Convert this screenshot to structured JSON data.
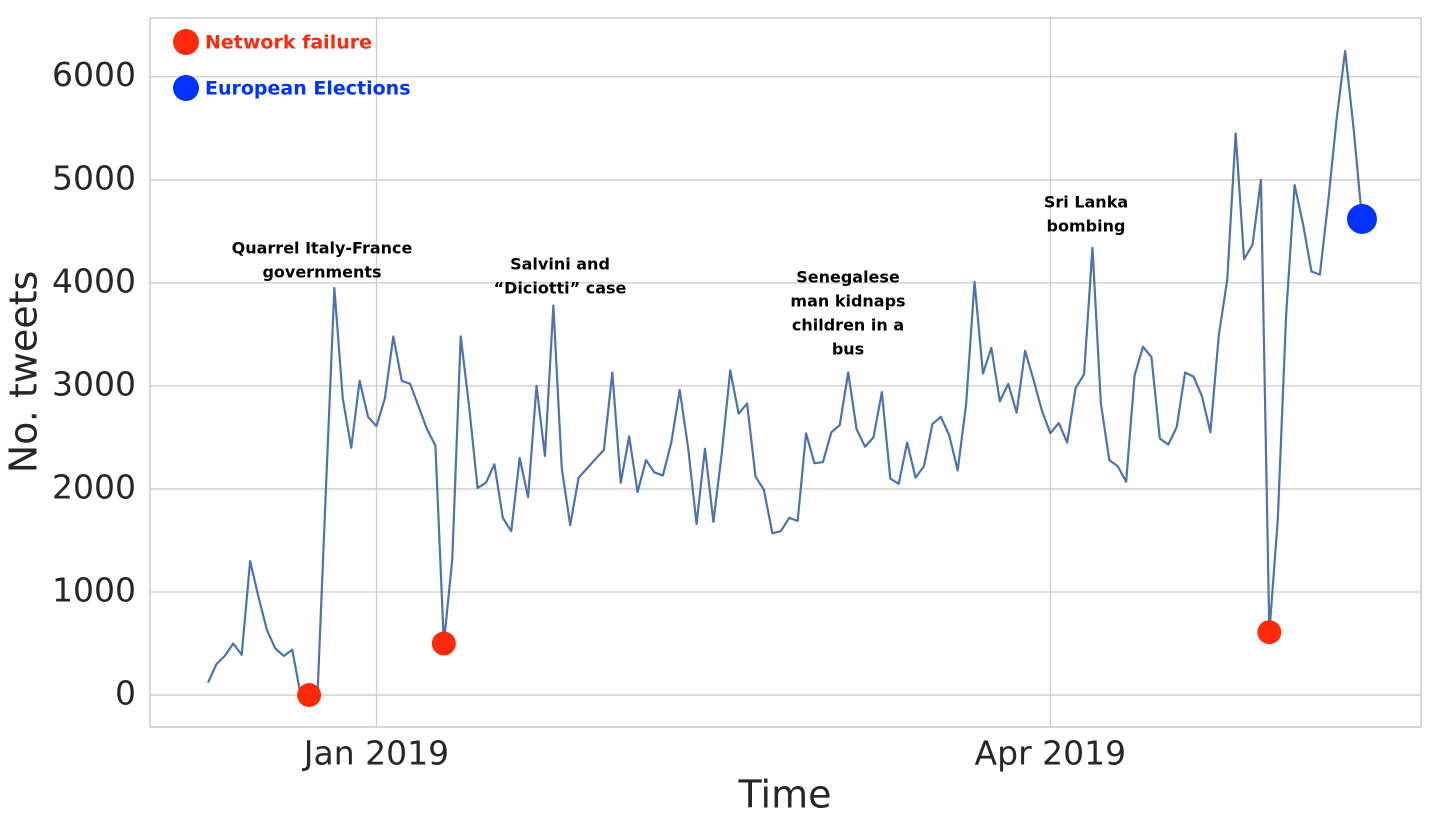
{
  "chart_data": {
    "type": "line",
    "xlabel": "Time",
    "ylabel": "No. tweets",
    "ylim": [
      -310,
      6570
    ],
    "yticks": [
      0,
      1000,
      2000,
      3000,
      4000,
      5000,
      6000
    ],
    "grid": true,
    "legend": "upper left",
    "categories": [
      null,
      null,
      null,
      null,
      null,
      null,
      null,
      null,
      null,
      null,
      null,
      null,
      null,
      null,
      null,
      null,
      null,
      null,
      null,
      null,
      "Jan 2019",
      null,
      null,
      null,
      null,
      null,
      null,
      null,
      null,
      null,
      null,
      null,
      null,
      null,
      null,
      null,
      null,
      null,
      null,
      null,
      null,
      null,
      null,
      null,
      null,
      null,
      null,
      null,
      null,
      null,
      null,
      null,
      null,
      null,
      null,
      null,
      null,
      null,
      null,
      null,
      null,
      null,
      null,
      null,
      null,
      null,
      null,
      null,
      null,
      null,
      null,
      null,
      null,
      null,
      null,
      null,
      null,
      null,
      null,
      null,
      null,
      null,
      null,
      null,
      null,
      null,
      null,
      null,
      null,
      null,
      null,
      null,
      null,
      null,
      null,
      null,
      null,
      null,
      null,
      null,
      "Apr 2019",
      null,
      null,
      null,
      null,
      null,
      null,
      null,
      null,
      null,
      null,
      null,
      null,
      null,
      null,
      null,
      null,
      null,
      null,
      null,
      null,
      null,
      null,
      null,
      null,
      null,
      null,
      null,
      null,
      null,
      null,
      null,
      null,
      null,
      null,
      null,
      null,
      null
    ],
    "series": [
      {
        "color": "#4c72b0",
        "values": [
          120,
          300,
          380,
          500,
          390,
          1300,
          950,
          630,
          450,
          380,
          440,
          0,
          0,
          0,
          2000,
          3950,
          2880,
          2400,
          3050,
          2700,
          2610,
          2880,
          3480,
          3050,
          3020,
          2800,
          2580,
          2420,
          500,
          1320,
          3480,
          2800,
          2010,
          2060,
          2240,
          1720,
          1590,
          2300,
          1920,
          3000,
          2320,
          3780,
          2200,
          1650,
          2110,
          2200,
          2290,
          2380,
          3130,
          2060,
          2510,
          1970,
          2280,
          2160,
          2130,
          2450,
          2960,
          2400,
          1660,
          2390,
          1680,
          2350,
          3150,
          2730,
          2830,
          2120,
          1990,
          1570,
          1590,
          1720,
          1690,
          2540,
          2250,
          2260,
          2550,
          2620,
          3130,
          2580,
          2410,
          2500,
          2940,
          2100,
          2050,
          2450,
          2110,
          2220,
          2630,
          2700,
          2520,
          2180,
          2820,
          4010,
          3120,
          3370,
          2850,
          3020,
          2740,
          3340,
          3060,
          2760,
          2540,
          2640,
          2450,
          2980,
          3110,
          4340,
          2830,
          2280,
          2220,
          2070,
          3100,
          3380,
          3280,
          2490,
          2430,
          2600,
          3130,
          3090,
          2900,
          2550,
          3490,
          4030,
          5450,
          4230,
          4370,
          5000,
          610,
          1700,
          3700,
          4950,
          4570,
          4110,
          4080,
          4800,
          5600,
          6250,
          5500,
          4620
        ]
      },
      {
        "name": "Network failure",
        "color": "#ff2a0a",
        "values": [
          null,
          null,
          null,
          null,
          null,
          null,
          null,
          null,
          null,
          null,
          null,
          null,
          0,
          null,
          null,
          null,
          null,
          null,
          null,
          null,
          null,
          null,
          null,
          null,
          null,
          null,
          null,
          null,
          500,
          null,
          null,
          null,
          null,
          null,
          null,
          null,
          null,
          null,
          null,
          null,
          null,
          null,
          null,
          null,
          null,
          null,
          null,
          null,
          null,
          null,
          null,
          null,
          null,
          null,
          null,
          null,
          null,
          null,
          null,
          null,
          null,
          null,
          null,
          null,
          null,
          null,
          null,
          null,
          null,
          null,
          null,
          null,
          null,
          null,
          null,
          null,
          null,
          null,
          null,
          null,
          null,
          null,
          null,
          null,
          null,
          null,
          null,
          null,
          null,
          null,
          null,
          null,
          null,
          null,
          null,
          null,
          null,
          null,
          null,
          null,
          null,
          null,
          null,
          null,
          null,
          null,
          null,
          null,
          null,
          null,
          null,
          null,
          null,
          null,
          null,
          null,
          null,
          null,
          null,
          null,
          null,
          null,
          null,
          null,
          null,
          null,
          610,
          null,
          null,
          null,
          null,
          null,
          null,
          null,
          null,
          null,
          null,
          null
        ]
      },
      {
        "name": "European Elections",
        "color": "#0033ff",
        "values": [
          null,
          null,
          null,
          null,
          null,
          null,
          null,
          null,
          null,
          null,
          null,
          null,
          null,
          null,
          null,
          null,
          null,
          null,
          null,
          null,
          null,
          null,
          null,
          null,
          null,
          null,
          null,
          null,
          null,
          null,
          null,
          null,
          null,
          null,
          null,
          null,
          null,
          null,
          null,
          null,
          null,
          null,
          null,
          null,
          null,
          null,
          null,
          null,
          null,
          null,
          null,
          null,
          null,
          null,
          null,
          null,
          null,
          null,
          null,
          null,
          null,
          null,
          null,
          null,
          null,
          null,
          null,
          null,
          null,
          null,
          null,
          null,
          null,
          null,
          null,
          null,
          null,
          null,
          null,
          null,
          null,
          null,
          null,
          null,
          null,
          null,
          null,
          null,
          null,
          null,
          null,
          null,
          null,
          null,
          null,
          null,
          null,
          null,
          null,
          null,
          null,
          null,
          null,
          null,
          null,
          null,
          null,
          null,
          null,
          null,
          null,
          null,
          null,
          null,
          null,
          null,
          null,
          null,
          null,
          null,
          null,
          null,
          null,
          null,
          null,
          null,
          null,
          null,
          null,
          null,
          null,
          null,
          null,
          null,
          null,
          null,
          null,
          4620
        ]
      }
    ],
    "annotations": [
      [
        "Quarrel Italy-France",
        "governments"
      ],
      [
        "Salvini and",
        "“Diciotti” case"
      ],
      [
        "Senegalese",
        "man kidnaps",
        "children in a",
        "bus"
      ],
      [
        "Sri Lanka",
        "bombing"
      ]
    ]
  }
}
